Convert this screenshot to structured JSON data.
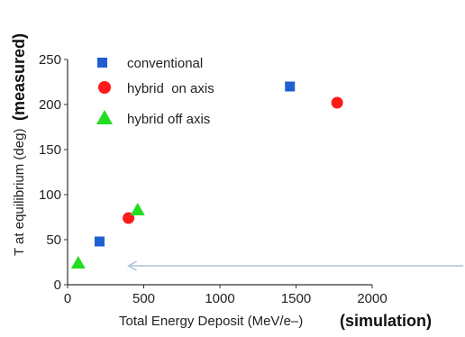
{
  "chart_data": {
    "type": "scatter",
    "xlabel": "Total Energy Deposit (MeV/e–)",
    "xlabel_suffix": "(simulation)",
    "ylabel": "T at equilibrium (deg)",
    "ylabel_suffix": "(measured)",
    "xlim": [
      0,
      2000
    ],
    "ylim": [
      0,
      250
    ],
    "xticks": [
      0,
      500,
      1000,
      1500,
      2000
    ],
    "yticks": [
      0,
      50,
      100,
      150,
      200,
      250
    ],
    "grid": false,
    "legend_position": "top-left",
    "series": [
      {
        "name": "conventional",
        "marker": "square",
        "color": "#1f5fd1",
        "points": [
          [
            210,
            48
          ],
          [
            1460,
            220
          ]
        ]
      },
      {
        "name": "hybrid  on axis",
        "marker": "circle",
        "color": "#ff1a1a",
        "points": [
          [
            400,
            74
          ],
          [
            1770,
            202
          ]
        ]
      },
      {
        "name": "hybrid off axis",
        "marker": "triangle",
        "color": "#22dd22",
        "points": [
          [
            70,
            24
          ],
          [
            460,
            83
          ]
        ]
      }
    ],
    "annotation": {
      "type": "arrow",
      "from_x": 2600,
      "to_x": 400,
      "y": 21,
      "color": "#a9c4dc"
    }
  }
}
